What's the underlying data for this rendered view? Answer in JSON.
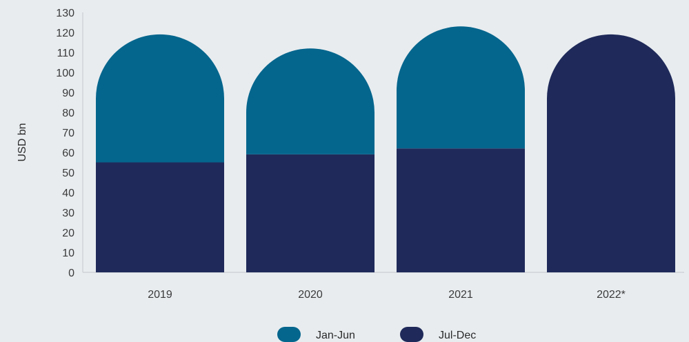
{
  "chart_data": {
    "type": "bar",
    "stacked": true,
    "rounded_top": true,
    "categories": [
      "2019",
      "2020",
      "2021",
      "2022*"
    ],
    "series": [
      {
        "name": "Jul-Dec",
        "color": "#1f2a5a",
        "values": [
          55,
          59,
          62,
          119
        ]
      },
      {
        "name": "Jan-Jun",
        "color": "#05668d",
        "values": [
          64,
          53,
          61,
          0
        ]
      }
    ],
    "xlabel": "",
    "ylabel": "USD bn",
    "ylim": [
      0,
      130
    ],
    "yticks": [
      0,
      10,
      20,
      30,
      40,
      50,
      60,
      70,
      80,
      90,
      100,
      110,
      120,
      130
    ],
    "legend": {
      "position": "bottom",
      "items": [
        {
          "label": "Jan-Jun",
          "color": "#05668d"
        },
        {
          "label": "Jul-Dec",
          "color": "#1f2a5a"
        }
      ]
    }
  }
}
